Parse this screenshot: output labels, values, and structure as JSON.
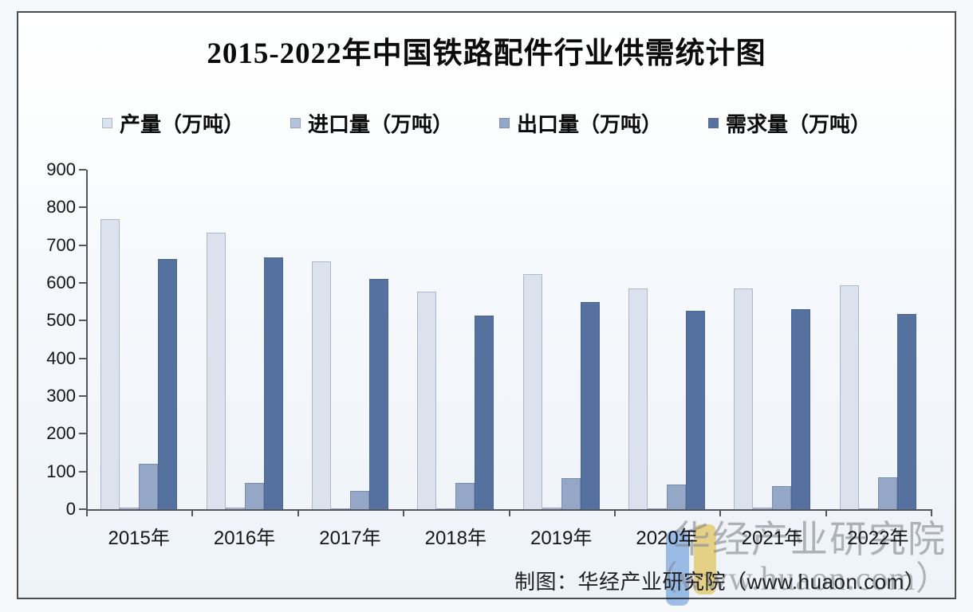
{
  "title": "2015-2022年中国铁路配件行业供需统计图",
  "source_text": "制图：华经产业研究院（www.huaon.com）",
  "watermark": {
    "line1": "华经产业研究院",
    "line2": "（www.huaon.com）"
  },
  "colors": {
    "axis": "#55575c",
    "watermark_gray": "#8f9092",
    "logo_blue": "#8cb6e6",
    "logo_yellow": "#f3d36c",
    "frame_border": "#4a4d52"
  },
  "chart_data": {
    "type": "bar",
    "title": "2015-2022年中国铁路配件行业供需统计图",
    "categories": [
      "2015年",
      "2016年",
      "2017年",
      "2018年",
      "2019年",
      "2020年",
      "2021年",
      "2022年"
    ],
    "series": [
      {
        "name": "产量（万吨）",
        "color": "#dce2ed",
        "values": [
          770,
          733,
          658,
          577,
          623,
          585,
          585,
          594
        ]
      },
      {
        "name": "进口量（万吨）",
        "color": "#b5c2da",
        "values": [
          4,
          4,
          2,
          3,
          5,
          3,
          5,
          2
        ]
      },
      {
        "name": "出口量（万吨）",
        "color": "#95a7c6",
        "values": [
          120,
          70,
          49,
          70,
          83,
          66,
          62,
          84
        ]
      },
      {
        "name": "需求量（万吨）",
        "color": "#55719f",
        "values": [
          663,
          667,
          611,
          514,
          549,
          527,
          531,
          518
        ]
      }
    ],
    "xlabel": "",
    "ylabel": "",
    "ylim": [
      0,
      900
    ],
    "yticks": [
      0,
      100,
      200,
      300,
      400,
      500,
      600,
      700,
      800,
      900
    ],
    "grid": false,
    "legend_position": "top"
  }
}
